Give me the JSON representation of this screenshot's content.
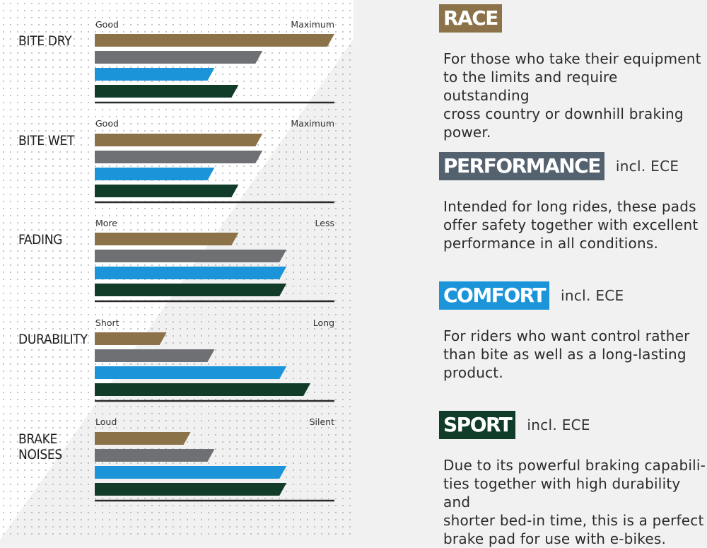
{
  "chart_data": {
    "type": "bar",
    "orientation": "horizontal",
    "categories": [
      "BITE DRY",
      "BITE WET",
      "FADING",
      "DURABILITY",
      "BRAKE\nNOISES"
    ],
    "scale_labels": [
      [
        "Good",
        "Maximum"
      ],
      [
        "Good",
        "Maximum"
      ],
      [
        "More",
        "Less"
      ],
      [
        "Short",
        "Long"
      ],
      [
        "Loud",
        "Silent"
      ]
    ],
    "xlim": [
      0,
      10
    ],
    "series": [
      {
        "name": "RACE",
        "color": "#8b7248",
        "values": [
          10,
          7,
          6,
          3,
          4
        ]
      },
      {
        "name": "PERFORMANCE",
        "color": "#6e7073",
        "values": [
          7,
          7,
          8,
          5,
          5
        ]
      },
      {
        "name": "COMFORT",
        "color": "#1b94d9",
        "values": [
          5,
          5,
          8,
          8,
          8
        ]
      },
      {
        "name": "SPORT",
        "color": "#103c29",
        "values": [
          6,
          6,
          8,
          9,
          8
        ]
      }
    ]
  },
  "legend": [
    {
      "name": "RACE",
      "incl": "",
      "badge_color": "#8b7248",
      "description": "For those who take their equipment\nto the limits and require outstanding\ncross country or downhill braking\npower."
    },
    {
      "name": "PERFORMANCE",
      "incl": "incl. ECE",
      "badge_color": "#546270",
      "description": "Intended for long rides, these pads\noffer safety together with excellent\nperformance in all conditions."
    },
    {
      "name": "COMFORT",
      "incl": "incl. ECE",
      "badge_color": "#1b94d9",
      "description": "For riders who want control rather\nthan bite as well as a long-lasting\nproduct."
    },
    {
      "name": "SPORT",
      "incl": "incl. ECE",
      "badge_color": "#103c29",
      "description": "Due to its powerful braking capabili-\nties together with high durability and\nshorter bed-in time, this is a perfect\nbrake pad for use with e-bikes."
    }
  ]
}
